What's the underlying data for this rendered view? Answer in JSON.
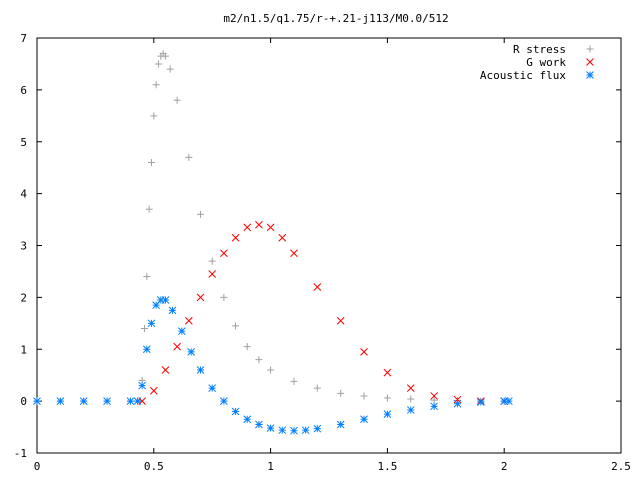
{
  "chart_data": {
    "type": "scatter",
    "title": "m2/n1.5/q1.75/r-+.21-j113/M0.0/512",
    "xlabel": "",
    "ylabel": "",
    "xlim": [
      0,
      2.5
    ],
    "ylim": [
      -1,
      7
    ],
    "x_ticks": [
      "0",
      "0.5",
      "1",
      "1.5",
      "2",
      "2.5"
    ],
    "y_ticks": [
      "-1",
      "0",
      "1",
      "2",
      "3",
      "4",
      "5",
      "6",
      "7"
    ],
    "grid": false,
    "legend_position": "top-right",
    "series": [
      {
        "name": "R stress",
        "marker": "plus",
        "color": "#a0a0a0",
        "points": [
          [
            0.0,
            0.0
          ],
          [
            0.1,
            0.0
          ],
          [
            0.2,
            0.0
          ],
          [
            0.3,
            0.0
          ],
          [
            0.4,
            0.0
          ],
          [
            0.44,
            0.0
          ],
          [
            0.45,
            0.4
          ],
          [
            0.46,
            1.4
          ],
          [
            0.47,
            2.4
          ],
          [
            0.48,
            3.7
          ],
          [
            0.49,
            4.6
          ],
          [
            0.5,
            5.5
          ],
          [
            0.51,
            6.1
          ],
          [
            0.52,
            6.5
          ],
          [
            0.53,
            6.65
          ],
          [
            0.54,
            6.7
          ],
          [
            0.55,
            6.65
          ],
          [
            0.57,
            6.4
          ],
          [
            0.6,
            5.8
          ],
          [
            0.65,
            4.7
          ],
          [
            0.7,
            3.6
          ],
          [
            0.75,
            2.7
          ],
          [
            0.8,
            2.0
          ],
          [
            0.85,
            1.45
          ],
          [
            0.9,
            1.05
          ],
          [
            0.95,
            0.8
          ],
          [
            1.0,
            0.6
          ],
          [
            1.1,
            0.38
          ],
          [
            1.2,
            0.25
          ],
          [
            1.3,
            0.15
          ],
          [
            1.4,
            0.1
          ],
          [
            1.5,
            0.06
          ],
          [
            1.6,
            0.04
          ],
          [
            1.7,
            0.02
          ],
          [
            1.8,
            0.01
          ],
          [
            1.9,
            0.0
          ],
          [
            2.0,
            0.0
          ]
        ]
      },
      {
        "name": "G work",
        "marker": "cross",
        "color": "#ff0000",
        "points": [
          [
            0.45,
            0.0
          ],
          [
            0.5,
            0.2
          ],
          [
            0.55,
            0.6
          ],
          [
            0.6,
            1.05
          ],
          [
            0.65,
            1.55
          ],
          [
            0.7,
            2.0
          ],
          [
            0.75,
            2.45
          ],
          [
            0.8,
            2.85
          ],
          [
            0.85,
            3.15
          ],
          [
            0.9,
            3.35
          ],
          [
            0.95,
            3.4
          ],
          [
            1.0,
            3.35
          ],
          [
            1.05,
            3.15
          ],
          [
            1.1,
            2.85
          ],
          [
            1.2,
            2.2
          ],
          [
            1.3,
            1.55
          ],
          [
            1.4,
            0.95
          ],
          [
            1.5,
            0.55
          ],
          [
            1.6,
            0.25
          ],
          [
            1.7,
            0.1
          ],
          [
            1.8,
            0.03
          ],
          [
            1.9,
            0.0
          ],
          [
            2.0,
            0.0
          ]
        ]
      },
      {
        "name": "Acoustic flux",
        "marker": "star",
        "color": "#0080ff",
        "points": [
          [
            0.0,
            0.0
          ],
          [
            0.1,
            0.0
          ],
          [
            0.2,
            0.0
          ],
          [
            0.3,
            0.0
          ],
          [
            0.4,
            0.0
          ],
          [
            0.43,
            0.0
          ],
          [
            0.45,
            0.3
          ],
          [
            0.47,
            1.0
          ],
          [
            0.49,
            1.5
          ],
          [
            0.51,
            1.85
          ],
          [
            0.53,
            1.95
          ],
          [
            0.55,
            1.95
          ],
          [
            0.58,
            1.75
          ],
          [
            0.62,
            1.35
          ],
          [
            0.66,
            0.95
          ],
          [
            0.7,
            0.6
          ],
          [
            0.75,
            0.25
          ],
          [
            0.8,
            0.0
          ],
          [
            0.85,
            -0.2
          ],
          [
            0.9,
            -0.35
          ],
          [
            0.95,
            -0.45
          ],
          [
            1.0,
            -0.52
          ],
          [
            1.05,
            -0.56
          ],
          [
            1.1,
            -0.57
          ],
          [
            1.15,
            -0.56
          ],
          [
            1.2,
            -0.53
          ],
          [
            1.3,
            -0.45
          ],
          [
            1.4,
            -0.35
          ],
          [
            1.5,
            -0.25
          ],
          [
            1.6,
            -0.17
          ],
          [
            1.7,
            -0.1
          ],
          [
            1.8,
            -0.05
          ],
          [
            1.9,
            -0.02
          ],
          [
            2.0,
            0.0
          ],
          [
            2.02,
            0.0
          ]
        ]
      }
    ]
  }
}
